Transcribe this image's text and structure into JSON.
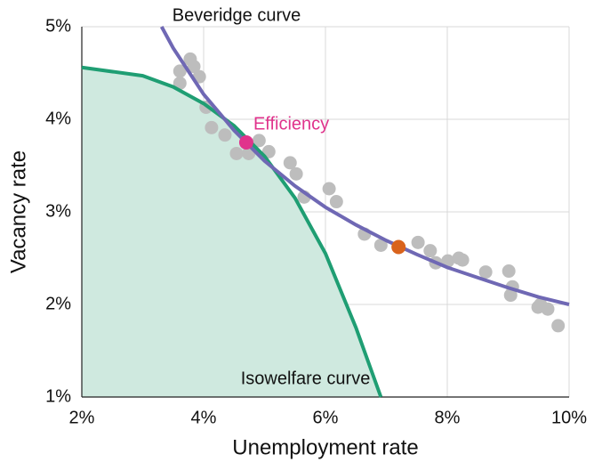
{
  "chart_data": {
    "type": "scatter",
    "x_label": "Unemployment rate",
    "y_label": "Vacancy rate",
    "xlim": [
      2,
      10
    ],
    "ylim": [
      1,
      5
    ],
    "xticks": [
      {
        "value": 2,
        "label": "2%"
      },
      {
        "value": 4,
        "label": "4%"
      },
      {
        "value": 6,
        "label": "6%"
      },
      {
        "value": 8,
        "label": "8%"
      },
      {
        "value": 10,
        "label": "10%"
      }
    ],
    "yticks": [
      {
        "value": 1,
        "label": "1%"
      },
      {
        "value": 2,
        "label": "2%"
      },
      {
        "value": 3,
        "label": "3%"
      },
      {
        "value": 4,
        "label": "4%"
      },
      {
        "value": 5,
        "label": "5%"
      }
    ],
    "grid": true,
    "curves": [
      {
        "name": "Isowelfare curve",
        "color": "#1f9e73",
        "fill": "#cfe9df",
        "x": [
          2,
          3,
          3.5,
          4,
          4.5,
          5,
          5.5,
          6,
          6.5,
          6.91
        ],
        "y": [
          4.56,
          4.47,
          4.35,
          4.17,
          3.93,
          3.6,
          3.15,
          2.55,
          1.75,
          1.0
        ]
      },
      {
        "name": "Beveridge curve",
        "color": "#6f68b4",
        "x": [
          3.31,
          3.5,
          4,
          4.5,
          5,
          5.5,
          6,
          6.5,
          7,
          7.5,
          8,
          8.5,
          9,
          9.5,
          10
        ],
        "y": [
          5.0,
          4.77,
          4.27,
          3.88,
          3.55,
          3.28,
          3.05,
          2.86,
          2.69,
          2.54,
          2.4,
          2.29,
          2.18,
          2.08,
          2.0
        ]
      }
    ],
    "points": {
      "color": "#bdbdbd",
      "x": [
        3.61,
        3.61,
        3.78,
        3.84,
        3.93,
        4.04,
        4.13,
        4.35,
        4.54,
        4.74,
        4.91,
        5.07,
        5.42,
        5.52,
        5.65,
        6.06,
        6.18,
        6.64,
        6.91,
        7.52,
        7.72,
        7.81,
        8.01,
        8.19,
        8.25,
        8.63,
        9.01,
        9.04,
        9.07,
        9.49,
        9.53,
        9.65,
        9.82
      ],
      "y": [
        4.52,
        4.39,
        4.65,
        4.57,
        4.46,
        4.13,
        3.91,
        3.83,
        3.63,
        3.63,
        3.77,
        3.65,
        3.53,
        3.41,
        3.16,
        3.25,
        3.11,
        2.76,
        2.64,
        2.67,
        2.58,
        2.45,
        2.47,
        2.5,
        2.48,
        2.35,
        2.36,
        2.1,
        2.19,
        1.97,
        2.0,
        1.95,
        1.77
      ]
    },
    "annotations": [
      {
        "text": "Efficiency",
        "x": 4.7,
        "y": 3.75,
        "color": "#e0338c"
      }
    ],
    "highlight": {
      "x": 7.2,
      "y": 2.62,
      "color": "#d9631c"
    }
  }
}
